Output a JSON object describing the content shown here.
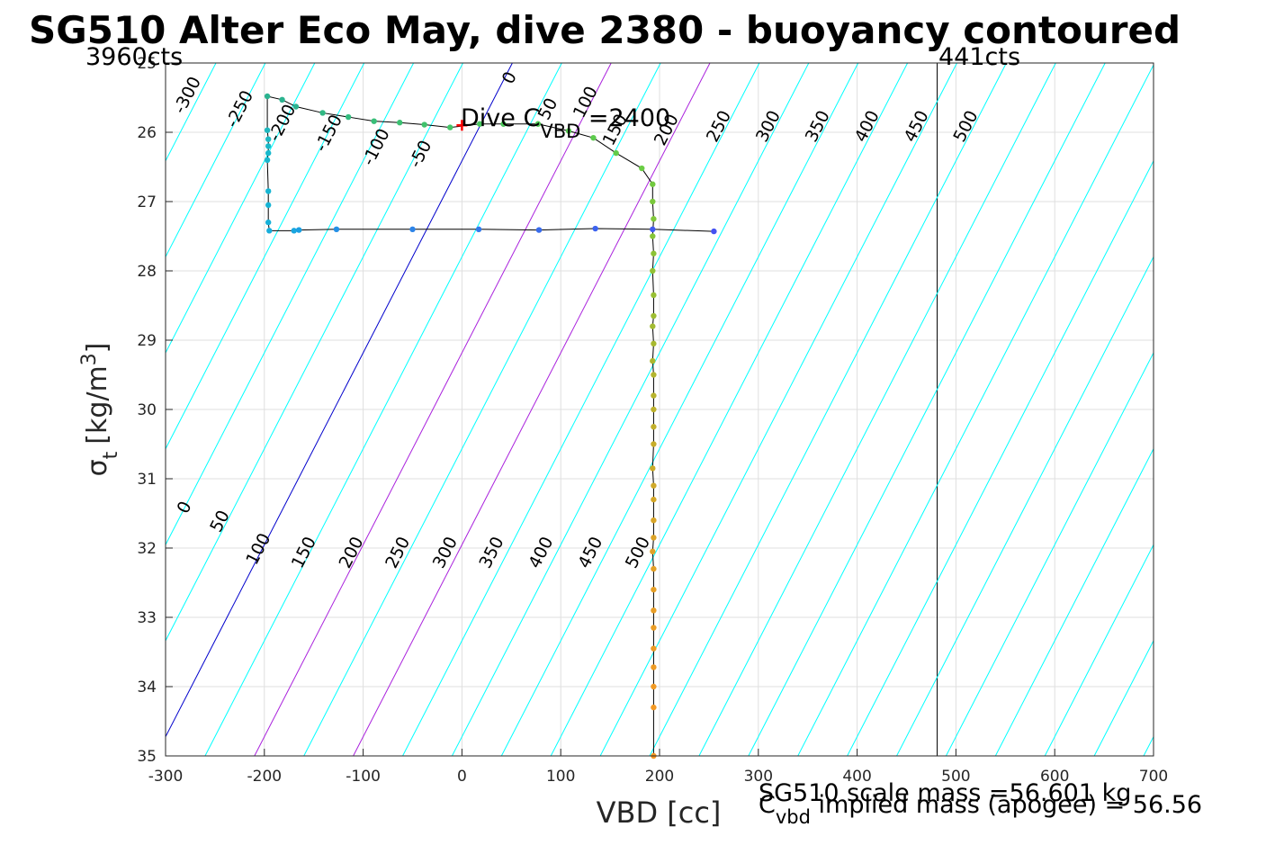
{
  "chart_data": {
    "type": "line",
    "title": "SG510 Alter Eco May, dive 2380 - buoyancy contoured",
    "xlabel": "VBD [cc]",
    "ylabel": "σ_t [kg/m³]",
    "ylabel_base": "σ",
    "ylabel_sub": "t",
    "ylabel_unit": "[kg/m",
    "ylabel_sup": "3",
    "ylabel_close": "]",
    "xlim": [
      -300,
      700
    ],
    "ylim": [
      25,
      35
    ],
    "y_reversed": true,
    "grid": true,
    "x_ticks": [
      "-300",
      "-200",
      "-100",
      "0",
      "100",
      "200",
      "300",
      "400",
      "500",
      "600",
      "700"
    ],
    "x_tick_values": [
      -300,
      -200,
      -100,
      0,
      100,
      200,
      300,
      400,
      500,
      600,
      700
    ],
    "y_ticks": [
      "25",
      "26",
      "27",
      "28",
      "29",
      "30",
      "31",
      "32",
      "33",
      "34",
      "35"
    ],
    "y_tick_values": [
      25,
      26,
      27,
      28,
      29,
      30,
      31,
      32,
      33,
      34,
      35
    ],
    "colors": {
      "contour": "#00ffff",
      "zero_contour": "#0000cc",
      "highlight_contour": "#aa22dd",
      "trace": "#000000",
      "marker": "#ff0000"
    },
    "contours": {
      "slope_sigma_per_cc": 0.0277,
      "zero_line_at_sigma_35_x": -310,
      "upper_labels": [
        {
          "text": "-300",
          "x": -273,
          "y": 25.5
        },
        {
          "text": "-250",
          "x": -220,
          "y": 25.7
        },
        {
          "text": "-200",
          "x": -177,
          "y": 25.9
        },
        {
          "text": "-150",
          "x": -130,
          "y": 26.05
        },
        {
          "text": "-100",
          "x": -82,
          "y": 26.25
        },
        {
          "text": "-50",
          "x": -37,
          "y": 26.35
        },
        {
          "text": "0",
          "x": 53,
          "y": 25.25
        },
        {
          "text": "50",
          "x": 92,
          "y": 25.7
        },
        {
          "text": "100",
          "x": 130,
          "y": 25.6
        },
        {
          "text": "150",
          "x": 160,
          "y": 26.0
        },
        {
          "text": "200",
          "x": 212,
          "y": 26.0
        },
        {
          "text": "250",
          "x": 265,
          "y": 25.95
        },
        {
          "text": "300",
          "x": 315,
          "y": 25.95
        },
        {
          "text": "350",
          "x": 365,
          "y": 25.95
        },
        {
          "text": "400",
          "x": 415,
          "y": 25.95
        },
        {
          "text": "450",
          "x": 465,
          "y": 25.95
        },
        {
          "text": "500",
          "x": 515,
          "y": 25.95
        }
      ],
      "lower_labels": [
        {
          "text": "0",
          "x": -276,
          "y": 31.45
        },
        {
          "text": "50",
          "x": -240,
          "y": 31.65
        },
        {
          "text": "100",
          "x": -201,
          "y": 32.05
        },
        {
          "text": "150",
          "x": -155,
          "y": 32.1
        },
        {
          "text": "200",
          "x": -107,
          "y": 32.1
        },
        {
          "text": "250",
          "x": -60,
          "y": 32.1
        },
        {
          "text": "300",
          "x": -12,
          "y": 32.1
        },
        {
          "text": "350",
          "x": 35,
          "y": 32.1
        },
        {
          "text": "400",
          "x": 85,
          "y": 32.1
        },
        {
          "text": "450",
          "x": 135,
          "y": 32.1
        },
        {
          "text": "500",
          "x": 183,
          "y": 32.1
        }
      ]
    },
    "vlines": [
      {
        "x": 481,
        "label": "441cts"
      }
    ],
    "corner_labels": {
      "left": "3960cts",
      "right": "441cts"
    },
    "dive_annotation": {
      "prefix": "Dive C",
      "sub": "VBD",
      "suffix": " =2400",
      "marker_x": 0,
      "marker_y": 25.9
    },
    "footer": {
      "scale_mass": "SG510 scale mass =56.601 kg",
      "implied_base": "C",
      "implied_sub": "vbd",
      "implied_text": " implied mass (apogee) = 56.56"
    },
    "series": [
      {
        "style": "trace",
        "x": [
          -197,
          -197,
          -196,
          -196,
          -196,
          -197,
          -196,
          -196,
          -196,
          -195,
          -170,
          -165,
          -127,
          -50,
          17,
          78,
          135,
          193,
          255
        ],
        "y": [
          25.48,
          25.97,
          26.1,
          26.2,
          26.3,
          26.4,
          26.85,
          27.05,
          27.3,
          27.42,
          27.42,
          27.41,
          27.4,
          27.4,
          27.4,
          27.41,
          27.39,
          27.4,
          27.43
        ]
      },
      {
        "style": "trace",
        "x": [
          -197,
          -182,
          -168,
          -141,
          -115,
          -89,
          -63,
          -38,
          -12,
          18,
          42,
          77,
          108,
          133,
          156,
          182,
          193,
          193,
          194,
          193,
          194,
          193,
          194,
          194,
          193,
          194,
          193,
          194,
          194,
          194,
          194,
          194,
          193,
          194,
          194,
          194,
          194,
          193,
          194,
          194,
          194,
          194,
          194,
          194,
          194,
          194,
          194
        ],
        "y": [
          25.48,
          25.53,
          25.63,
          25.72,
          25.78,
          25.84,
          25.86,
          25.89,
          25.93,
          25.88,
          25.88,
          25.88,
          25.98,
          26.08,
          26.3,
          26.52,
          26.75,
          27.0,
          27.25,
          27.5,
          27.75,
          28.0,
          28.35,
          28.65,
          28.8,
          29.05,
          29.3,
          29.5,
          29.8,
          30.0,
          30.25,
          30.5,
          30.85,
          31.1,
          31.3,
          31.6,
          31.85,
          32.05,
          32.3,
          32.6,
          32.9,
          33.15,
          33.45,
          33.72,
          34.0,
          34.3,
          35.0
        ]
      }
    ],
    "points": [
      {
        "x": -197,
        "y": 25.48,
        "color": "#2bb38f"
      },
      {
        "x": -182,
        "y": 25.53,
        "color": "#2bb38f"
      },
      {
        "x": -168,
        "y": 25.63,
        "color": "#2bb38f"
      },
      {
        "x": -141,
        "y": 25.72,
        "color": "#31b883"
      },
      {
        "x": -115,
        "y": 25.78,
        "color": "#34bb7e"
      },
      {
        "x": -89,
        "y": 25.84,
        "color": "#38be78"
      },
      {
        "x": -63,
        "y": 25.86,
        "color": "#3cc072"
      },
      {
        "x": -38,
        "y": 25.89,
        "color": "#40c26c"
      },
      {
        "x": -12,
        "y": 25.93,
        "color": "#44c466"
      },
      {
        "x": 18,
        "y": 25.88,
        "color": "#48c660"
      },
      {
        "x": 42,
        "y": 25.88,
        "color": "#4cc85a"
      },
      {
        "x": 77,
        "y": 25.88,
        "color": "#50c955"
      },
      {
        "x": 108,
        "y": 25.98,
        "color": "#56ca50"
      },
      {
        "x": 133,
        "y": 26.08,
        "color": "#5ccb4c"
      },
      {
        "x": 156,
        "y": 26.3,
        "color": "#62cc48"
      },
      {
        "x": 182,
        "y": 26.52,
        "color": "#6acd44"
      },
      {
        "x": 193,
        "y": 26.75,
        "color": "#72c93f"
      },
      {
        "x": 193,
        "y": 27.0,
        "color": "#7ac83c"
      },
      {
        "x": 194,
        "y": 27.25,
        "color": "#80c73a"
      },
      {
        "x": 193,
        "y": 27.5,
        "color": "#86c538"
      },
      {
        "x": 194,
        "y": 27.75,
        "color": "#8cc336"
      },
      {
        "x": 193,
        "y": 28.0,
        "color": "#92c134"
      },
      {
        "x": 194,
        "y": 28.35,
        "color": "#98bf33"
      },
      {
        "x": 194,
        "y": 28.65,
        "color": "#9ebd32"
      },
      {
        "x": 193,
        "y": 28.8,
        "color": "#a3bb31"
      },
      {
        "x": 194,
        "y": 29.05,
        "color": "#a8b930"
      },
      {
        "x": 193,
        "y": 29.3,
        "color": "#aeb72f"
      },
      {
        "x": 194,
        "y": 29.5,
        "color": "#b3b52e"
      },
      {
        "x": 194,
        "y": 29.8,
        "color": "#b8b32d"
      },
      {
        "x": 194,
        "y": 30.0,
        "color": "#bdb12c"
      },
      {
        "x": 194,
        "y": 30.25,
        "color": "#c2af2b"
      },
      {
        "x": 194,
        "y": 30.5,
        "color": "#c7ad2a"
      },
      {
        "x": 193,
        "y": 30.85,
        "color": "#ccab29"
      },
      {
        "x": 194,
        "y": 31.1,
        "color": "#d0a929"
      },
      {
        "x": 194,
        "y": 31.3,
        "color": "#d4a728"
      },
      {
        "x": 194,
        "y": 31.6,
        "color": "#d8a528"
      },
      {
        "x": 194,
        "y": 31.85,
        "color": "#dca327"
      },
      {
        "x": 193,
        "y": 32.05,
        "color": "#e0a227"
      },
      {
        "x": 194,
        "y": 32.3,
        "color": "#e3a026"
      },
      {
        "x": 194,
        "y": 32.6,
        "color": "#e69f26"
      },
      {
        "x": 194,
        "y": 32.9,
        "color": "#e99e26"
      },
      {
        "x": 194,
        "y": 33.15,
        "color": "#eb9d25"
      },
      {
        "x": 194,
        "y": 33.45,
        "color": "#ed9c25"
      },
      {
        "x": 194,
        "y": 33.72,
        "color": "#ef9b25"
      },
      {
        "x": 194,
        "y": 34.0,
        "color": "#f19a24"
      },
      {
        "x": 194,
        "y": 34.3,
        "color": "#f39924"
      },
      {
        "x": 194,
        "y": 35.0,
        "color": "#f59824"
      },
      {
        "x": -197,
        "y": 25.97,
        "color": "#1fb8bf"
      },
      {
        "x": -196,
        "y": 26.1,
        "color": "#1cb9c4"
      },
      {
        "x": -196,
        "y": 26.2,
        "color": "#1ab9c8"
      },
      {
        "x": -196,
        "y": 26.3,
        "color": "#18b8cc"
      },
      {
        "x": -197,
        "y": 26.4,
        "color": "#17b7cf"
      },
      {
        "x": -196,
        "y": 26.85,
        "color": "#16b5d2"
      },
      {
        "x": -196,
        "y": 27.05,
        "color": "#16b3d5"
      },
      {
        "x": -196,
        "y": 27.3,
        "color": "#16b0d8"
      },
      {
        "x": -195,
        "y": 27.42,
        "color": "#17addb"
      },
      {
        "x": -170,
        "y": 27.42,
        "color": "#19a6df"
      },
      {
        "x": -165,
        "y": 27.41,
        "color": "#1b9fe2"
      },
      {
        "x": -127,
        "y": 27.4,
        "color": "#2590e6"
      },
      {
        "x": -50,
        "y": 27.4,
        "color": "#2d84e8"
      },
      {
        "x": 17,
        "y": 27.4,
        "color": "#3379ea"
      },
      {
        "x": 78,
        "y": 27.41,
        "color": "#386ced"
      },
      {
        "x": 135,
        "y": 27.39,
        "color": "#3c63ef"
      },
      {
        "x": 193,
        "y": 27.4,
        "color": "#405af0"
      },
      {
        "x": 255,
        "y": 27.43,
        "color": "#4451f1"
      }
    ]
  }
}
